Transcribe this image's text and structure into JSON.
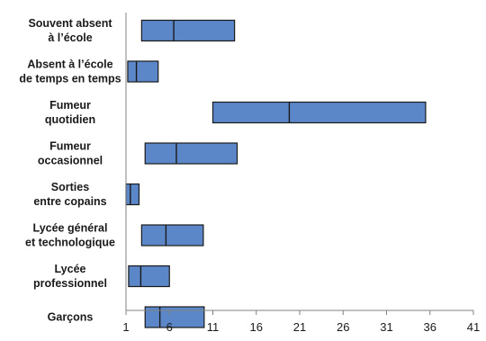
{
  "chart_data": {
    "type": "bar",
    "subtype": "horizontal-range-with-marker",
    "title": "",
    "xlabel": "",
    "ylabel": "",
    "xlim": [
      1,
      41
    ],
    "xticks": [
      1,
      6,
      11,
      16,
      21,
      26,
      31,
      36,
      41
    ],
    "grid": false,
    "legend": "none",
    "bar_color": "#5b87c8",
    "bar_edge_color": "#1a1a1a",
    "categories": [
      [
        "Souvent absent",
        "à l’école"
      ],
      [
        "Absent à l’école",
        "de temps en temps"
      ],
      [
        "Fumeur",
        "quotidien"
      ],
      [
        "Fumeur",
        "occasionnel"
      ],
      [
        "Sorties",
        "entre copains"
      ],
      [
        "Lycée général",
        "et technologique"
      ],
      [
        "Lycée",
        "professionnel"
      ],
      [
        "Garçons"
      ]
    ],
    "ranges": [
      {
        "low": 2.8,
        "mid": 6.5,
        "high": 13.5
      },
      {
        "low": 1.2,
        "mid": 2.2,
        "high": 4.7
      },
      {
        "low": 11.0,
        "mid": 19.8,
        "high": 35.5
      },
      {
        "low": 3.2,
        "mid": 6.8,
        "high": 13.8
      },
      {
        "low": 1.0,
        "mid": 1.5,
        "high": 2.5
      },
      {
        "low": 2.8,
        "mid": 5.6,
        "high": 9.9
      },
      {
        "low": 1.3,
        "mid": 2.7,
        "high": 6.0
      },
      {
        "low": 3.2,
        "mid": 4.9,
        "high": 10.0
      }
    ]
  }
}
